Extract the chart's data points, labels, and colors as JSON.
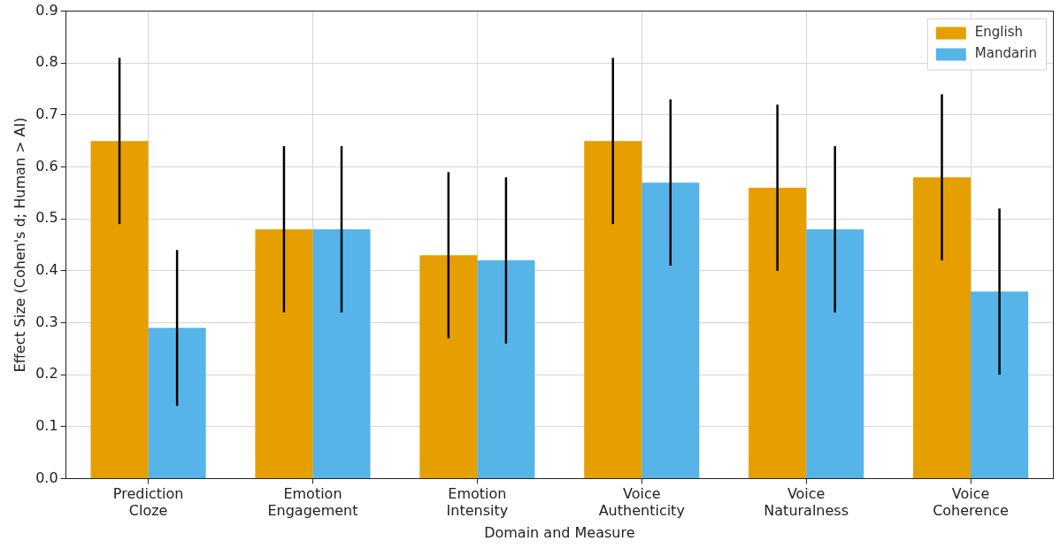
{
  "chart_data": {
    "type": "bar",
    "xlabel": "Domain and Measure",
    "ylabel": "Effect Size (Cohen's d; Human > AI)",
    "categories": [
      "Prediction\nCloze",
      "Emotion\nEngagement",
      "Emotion\nIntensity",
      "Voice\nAuthenticity",
      "Voice\nNaturalness",
      "Voice\nCoherence"
    ],
    "series": [
      {
        "name": "English",
        "color": "#e69f00",
        "values": [
          0.65,
          0.48,
          0.43,
          0.65,
          0.56,
          0.58
        ],
        "errors": [
          0.16,
          0.16,
          0.16,
          0.16,
          0.16,
          0.16
        ]
      },
      {
        "name": "Mandarin",
        "color": "#56b4e9",
        "values": [
          0.29,
          0.48,
          0.42,
          0.57,
          0.48,
          0.36
        ],
        "errors": [
          0.15,
          0.16,
          0.16,
          0.16,
          0.16,
          0.16
        ]
      }
    ],
    "ylim": [
      0,
      0.9
    ],
    "yticks": [
      {
        "value": 0,
        "label": "0.0"
      },
      0.1,
      0.2,
      0.3,
      0.4,
      0.5,
      0.6,
      0.7,
      0.8,
      0.9
    ],
    "grid": true,
    "legend": "top right"
  }
}
